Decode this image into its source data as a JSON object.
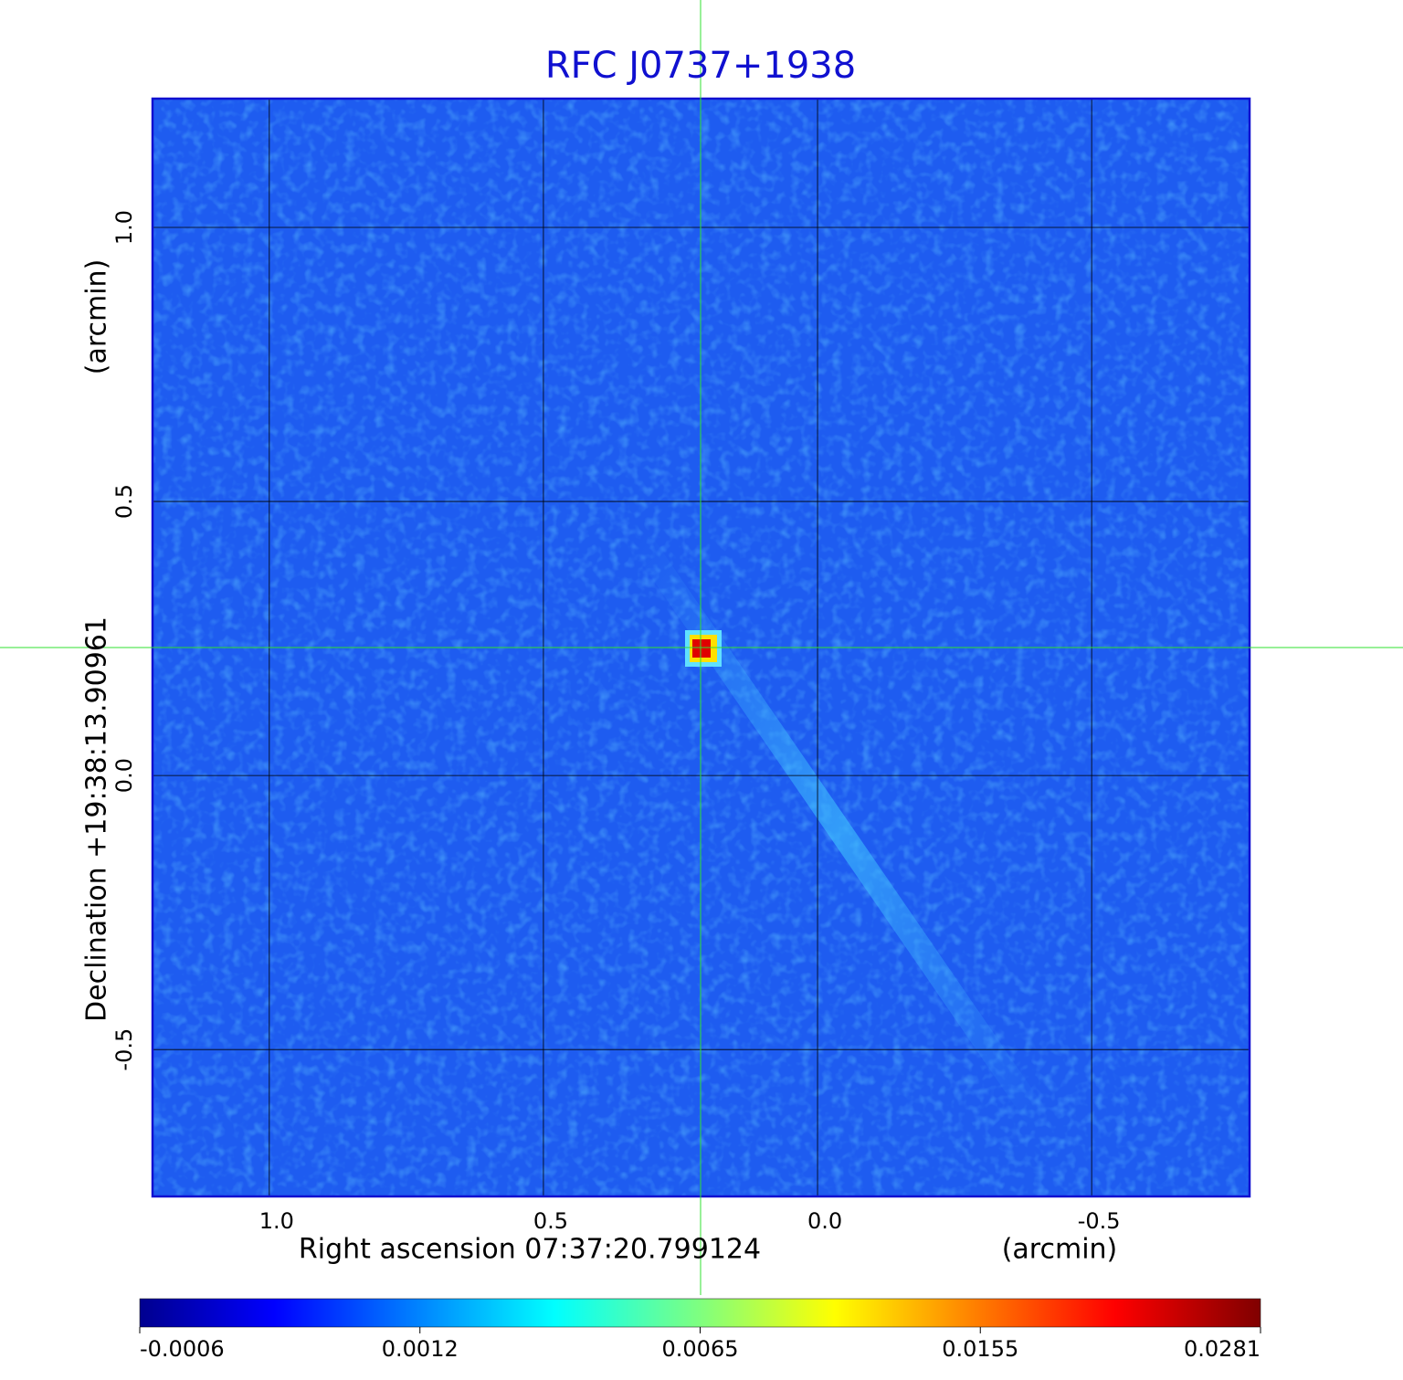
{
  "chart_data": {
    "type": "image",
    "title": "RFC J0737+1938",
    "x_label": "Right ascension  07:37:20.799124",
    "x_unit": "(arcmin)",
    "y_label": "Declination  +19:38:13.90961",
    "y_unit": "(arcmin)",
    "xlim": [
      1.213,
      -0.788
    ],
    "xticks": [
      {
        "value": 1,
        "label": "1.0"
      },
      0.5,
      {
        "value": 0,
        "label": "0.0"
      },
      -0.5
    ],
    "ylim": [
      -0.768,
      1.235
    ],
    "yticks": [
      -0.5,
      {
        "value": 0,
        "label": "0.0"
      },
      0.5,
      {
        "value": 1,
        "label": "1.0"
      }
    ],
    "grid": true,
    "colorbar_ticks": [
      -0.0006,
      0.0012,
      0.0065,
      0.0155,
      0.0281
    ]
  }
}
